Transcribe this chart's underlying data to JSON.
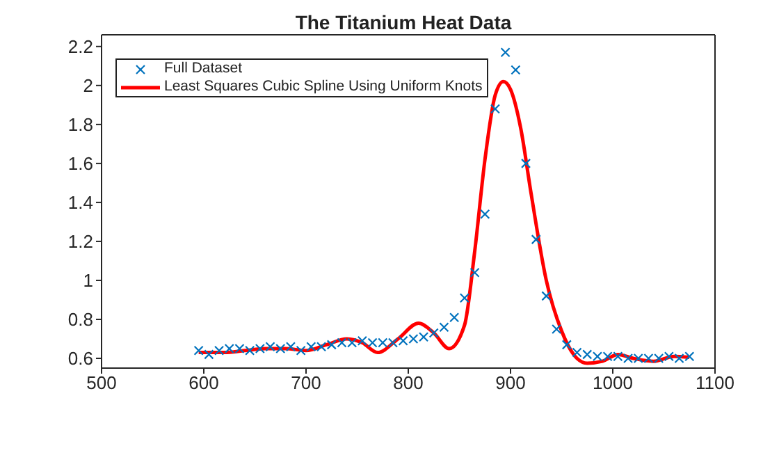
{
  "chart_data": {
    "type": "scatter",
    "title": "The Titanium Heat Data",
    "xlim": [
      500,
      1100
    ],
    "xticks": [
      500,
      600,
      700,
      800,
      900,
      1000,
      1100
    ],
    "ylim": [
      0.55,
      2.26
    ],
    "yticks": [
      0.6,
      0.8,
      1,
      1.2,
      1.4,
      1.6,
      1.8,
      2,
      2.2
    ],
    "grid": false,
    "legend": "top left",
    "series": [
      {
        "name": "Full Dataset",
        "marker": "cross",
        "color": "#0072bd",
        "x": [
          595,
          605,
          615,
          625,
          635,
          645,
          655,
          665,
          675,
          685,
          695,
          705,
          715,
          725,
          735,
          745,
          755,
          765,
          775,
          785,
          795,
          805,
          815,
          825,
          835,
          845,
          855,
          865,
          875,
          885,
          895,
          905,
          915,
          925,
          935,
          945,
          955,
          965,
          975,
          985,
          995,
          1005,
          1015,
          1025,
          1035,
          1045,
          1055,
          1065,
          1075
        ],
        "values": [
          0.64,
          0.62,
          0.64,
          0.65,
          0.65,
          0.64,
          0.65,
          0.66,
          0.65,
          0.66,
          0.64,
          0.66,
          0.66,
          0.67,
          0.68,
          0.68,
          0.69,
          0.68,
          0.68,
          0.68,
          0.69,
          0.7,
          0.71,
          0.73,
          0.76,
          0.81,
          0.91,
          1.04,
          1.34,
          1.88,
          2.17,
          2.08,
          1.6,
          1.21,
          0.92,
          0.75,
          0.67,
          0.63,
          0.62,
          0.61,
          0.61,
          0.61,
          0.6,
          0.6,
          0.6,
          0.6,
          0.61,
          0.6,
          0.61
        ]
      },
      {
        "name": "Least Squares Cubic Spline Using Uniform Knots",
        "type": "line",
        "marker": "none",
        "line_style": "solid",
        "color": "#ff0000",
        "x": [
          595,
          620,
          640,
          660,
          680,
          700,
          720,
          740,
          755,
          770,
          790,
          810,
          825,
          840,
          855,
          865,
          875,
          885,
          893,
          900,
          910,
          920,
          935,
          950,
          965,
          975,
          990,
          1005,
          1020,
          1040,
          1060,
          1075
        ],
        "values": [
          0.63,
          0.63,
          0.64,
          0.65,
          0.65,
          0.64,
          0.67,
          0.7,
          0.68,
          0.63,
          0.7,
          0.78,
          0.73,
          0.65,
          0.77,
          1.15,
          1.62,
          1.95,
          2.02,
          1.98,
          1.78,
          1.45,
          1.0,
          0.74,
          0.6,
          0.575,
          0.585,
          0.62,
          0.6,
          0.585,
          0.61,
          0.605
        ]
      }
    ]
  }
}
